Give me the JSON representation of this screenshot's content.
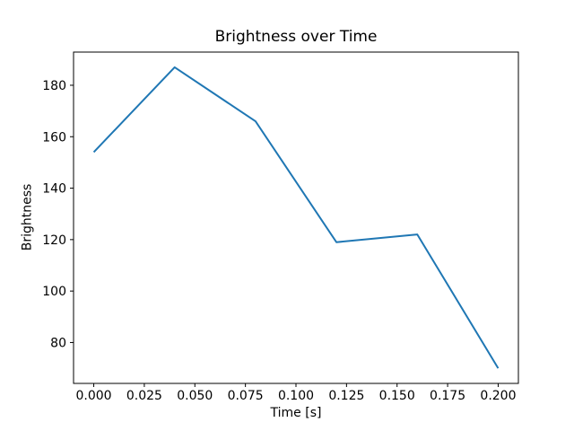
{
  "chart_data": {
    "type": "line",
    "title": "Brightness over Time",
    "xlabel": "Time [s]",
    "ylabel": "Brightness",
    "series": [
      {
        "name": "brightness",
        "x": [
          0.0,
          0.04,
          0.08,
          0.12,
          0.16,
          0.2
        ],
        "y": [
          154,
          187,
          166,
          119,
          122,
          70
        ],
        "color": "#1f77b4"
      }
    ],
    "xlim": [
      -0.01,
      0.21
    ],
    "ylim": [
      64.1,
      192.9
    ],
    "x_ticks": [
      0.0,
      0.025,
      0.05,
      0.075,
      0.1,
      0.125,
      0.15,
      0.175,
      0.2
    ],
    "x_tick_labels": [
      "0.000",
      "0.025",
      "0.050",
      "0.075",
      "0.100",
      "0.125",
      "0.150",
      "0.175",
      "0.200"
    ],
    "y_ticks": [
      80,
      100,
      120,
      140,
      160,
      180
    ],
    "y_tick_labels": [
      "80",
      "100",
      "120",
      "140",
      "160",
      "180"
    ],
    "grid": false,
    "legend": false,
    "background_color": "#ffffff",
    "spine_color": "#000000",
    "text_color": "#000000"
  }
}
